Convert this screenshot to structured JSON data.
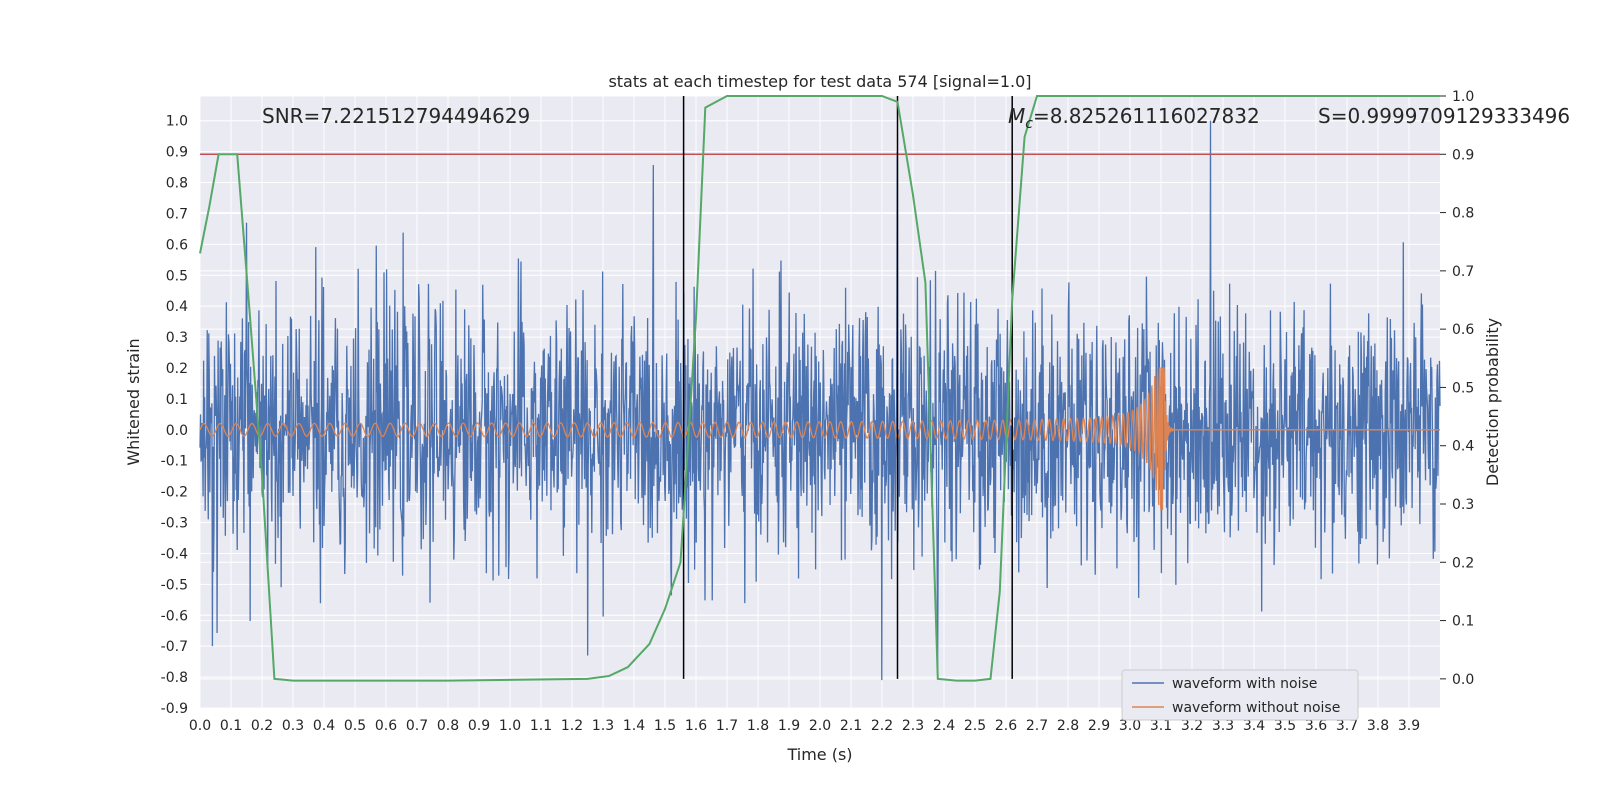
{
  "chart_data": {
    "type": "line",
    "title": "stats at each timestep for test data 574 [signal=1.0]",
    "xlabel": "Time (s)",
    "ylabel": "Whitened strain",
    "ylabel_right": "Detection probability",
    "xlim": [
      0.0,
      4.0
    ],
    "ylim": [
      -0.9,
      1.08
    ],
    "ylim_right": [
      -0.05,
      1.0
    ],
    "x_ticks": [
      "0.0",
      "0.1",
      "0.2",
      "0.3",
      "0.4",
      "0.5",
      "0.6",
      "0.7",
      "0.8",
      "0.9",
      "1.0",
      "1.1",
      "1.2",
      "1.3",
      "1.4",
      "1.5",
      "1.6",
      "1.7",
      "1.8",
      "1.9",
      "2.0",
      "2.1",
      "2.2",
      "2.3",
      "2.4",
      "2.5",
      "2.6",
      "2.7",
      "2.8",
      "2.9",
      "3.0",
      "3.1",
      "3.2",
      "3.3",
      "3.4",
      "3.5",
      "3.6",
      "3.7",
      "3.8",
      "3.9"
    ],
    "y_ticks": [
      "1.0",
      "0.9",
      "0.8",
      "0.7",
      "0.6",
      "0.5",
      "0.4",
      "0.3",
      "0.2",
      "0.1",
      "0.0",
      "-0.1",
      "-0.2",
      "-0.3",
      "-0.4",
      "-0.5",
      "-0.6",
      "-0.7",
      "-0.8",
      "-0.9"
    ],
    "y_ticks_right": [
      "1.0",
      "0.9",
      "0.8",
      "0.7",
      "0.6",
      "0.5",
      "0.4",
      "0.3",
      "0.2",
      "0.1",
      "0.0"
    ],
    "grid": true,
    "legend_position": "bottom-right",
    "annotations": {
      "snr": "SNR=7.221512794494629",
      "mc_symbol": "M",
      "mc_sub": "c",
      "mc_value": "=8.825261116027832",
      "s": "S=0.9999709129333496"
    },
    "series": [
      {
        "name": "waveform with noise",
        "color": "#4c72b0",
        "kind": "noise",
        "amplitude_rms": 0.2,
        "x_range": [
          0.0,
          4.0
        ],
        "notable_peaks": [
          [
            3.26,
            1.0
          ],
          [
            2.2,
            -0.81
          ],
          [
            2.25,
            0.9
          ],
          [
            2.38,
            -0.79
          ],
          [
            0.04,
            -0.7
          ],
          [
            1.25,
            -0.73
          ],
          [
            0.15,
            0.67
          ]
        ]
      },
      {
        "name": "waveform without noise",
        "color": "#dd8452",
        "kind": "chirp",
        "x_range": [
          0.0,
          4.0
        ],
        "merger_time": 3.11,
        "amplitude_start": 0.02,
        "amplitude_at_merger": [
          0.2,
          -0.26
        ]
      }
    ],
    "detection_probability": {
      "color": "#55a868",
      "x": [
        0.0,
        0.03,
        0.06,
        0.12,
        0.16,
        0.2,
        0.24,
        0.3,
        0.4,
        0.8,
        1.25,
        1.32,
        1.38,
        1.45,
        1.5,
        1.55,
        1.6,
        1.63,
        1.7,
        2.2,
        2.25,
        2.3,
        2.34,
        2.38,
        2.44,
        2.5,
        2.55,
        2.58,
        2.62,
        2.66,
        2.7,
        4.0
      ],
      "y": [
        0.73,
        0.81,
        0.9,
        0.9,
        0.63,
        0.35,
        0.0,
        -0.003,
        -0.003,
        -0.003,
        0.0,
        0.005,
        0.02,
        0.06,
        0.12,
        0.2,
        0.62,
        0.98,
        1.0,
        1.0,
        0.99,
        0.83,
        0.68,
        0.0,
        -0.003,
        -0.003,
        0.0,
        0.15,
        0.65,
        0.93,
        1.0,
        1.0
      ]
    },
    "threshold": {
      "color": "#c44e52",
      "value": 0.9
    },
    "vertical_lines": [
      1.56,
      2.25,
      2.62
    ]
  }
}
